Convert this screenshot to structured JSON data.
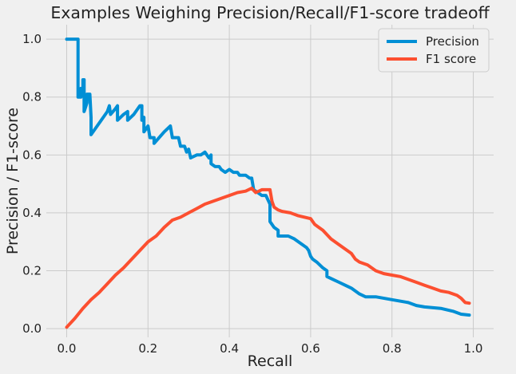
{
  "chart_data": {
    "type": "line",
    "title": "Examples Weighing Precision/Recall/F1-score tradeoff",
    "xlabel": "Recall",
    "ylabel": "Precision / F1-score",
    "xlim": [
      -0.05,
      1.05
    ],
    "ylim": [
      -0.03,
      1.05
    ],
    "xticks": [
      0.0,
      0.2,
      0.4,
      0.6,
      0.8,
      1.0
    ],
    "xtick_labels": [
      "0.0",
      "0.2",
      "0.4",
      "0.6",
      "0.8",
      "1.0"
    ],
    "yticks": [
      0.0,
      0.2,
      0.4,
      0.6,
      0.8,
      1.0
    ],
    "ytick_labels": [
      "0.0",
      "0.2",
      "0.4",
      "0.6",
      "0.8",
      "1.0"
    ],
    "grid": true,
    "legend_position": "top-right",
    "series": [
      {
        "name": "Precision",
        "color": "#008fd5",
        "points": [
          [
            0.0,
            1.0
          ],
          [
            0.028,
            1.0
          ],
          [
            0.028,
            0.8
          ],
          [
            0.035,
            0.8
          ],
          [
            0.035,
            0.83
          ],
          [
            0.04,
            0.83
          ],
          [
            0.04,
            0.86
          ],
          [
            0.043,
            0.86
          ],
          [
            0.043,
            0.75
          ],
          [
            0.05,
            0.78
          ],
          [
            0.05,
            0.81
          ],
          [
            0.057,
            0.81
          ],
          [
            0.06,
            0.73
          ],
          [
            0.06,
            0.67
          ],
          [
            0.08,
            0.71
          ],
          [
            0.1,
            0.75
          ],
          [
            0.105,
            0.77
          ],
          [
            0.108,
            0.74
          ],
          [
            0.12,
            0.76
          ],
          [
            0.125,
            0.77
          ],
          [
            0.125,
            0.72
          ],
          [
            0.14,
            0.74
          ],
          [
            0.15,
            0.75
          ],
          [
            0.15,
            0.72
          ],
          [
            0.165,
            0.74
          ],
          [
            0.18,
            0.77
          ],
          [
            0.185,
            0.77
          ],
          [
            0.185,
            0.72
          ],
          [
            0.19,
            0.73
          ],
          [
            0.19,
            0.68
          ],
          [
            0.2,
            0.7
          ],
          [
            0.205,
            0.66
          ],
          [
            0.215,
            0.66
          ],
          [
            0.215,
            0.64
          ],
          [
            0.24,
            0.68
          ],
          [
            0.255,
            0.7
          ],
          [
            0.26,
            0.66
          ],
          [
            0.275,
            0.66
          ],
          [
            0.28,
            0.63
          ],
          [
            0.29,
            0.63
          ],
          [
            0.295,
            0.61
          ],
          [
            0.3,
            0.62
          ],
          [
            0.305,
            0.59
          ],
          [
            0.32,
            0.6
          ],
          [
            0.33,
            0.6
          ],
          [
            0.34,
            0.61
          ],
          [
            0.35,
            0.59
          ],
          [
            0.355,
            0.6
          ],
          [
            0.355,
            0.57
          ],
          [
            0.365,
            0.56
          ],
          [
            0.375,
            0.56
          ],
          [
            0.38,
            0.55
          ],
          [
            0.39,
            0.54
          ],
          [
            0.4,
            0.55
          ],
          [
            0.41,
            0.54
          ],
          [
            0.42,
            0.54
          ],
          [
            0.425,
            0.53
          ],
          [
            0.44,
            0.53
          ],
          [
            0.45,
            0.52
          ],
          [
            0.455,
            0.52
          ],
          [
            0.46,
            0.48
          ],
          [
            0.47,
            0.47
          ],
          [
            0.48,
            0.46
          ],
          [
            0.49,
            0.46
          ],
          [
            0.5,
            0.43
          ],
          [
            0.5,
            0.37
          ],
          [
            0.51,
            0.35
          ],
          [
            0.52,
            0.34
          ],
          [
            0.52,
            0.32
          ],
          [
            0.545,
            0.32
          ],
          [
            0.56,
            0.31
          ],
          [
            0.58,
            0.29
          ],
          [
            0.59,
            0.28
          ],
          [
            0.595,
            0.27
          ],
          [
            0.6,
            0.25
          ],
          [
            0.605,
            0.24
          ],
          [
            0.615,
            0.23
          ],
          [
            0.63,
            0.21
          ],
          [
            0.64,
            0.2
          ],
          [
            0.64,
            0.18
          ],
          [
            0.655,
            0.17
          ],
          [
            0.67,
            0.16
          ],
          [
            0.685,
            0.15
          ],
          [
            0.7,
            0.14
          ],
          [
            0.72,
            0.12
          ],
          [
            0.735,
            0.11
          ],
          [
            0.76,
            0.11
          ],
          [
            0.8,
            0.1
          ],
          [
            0.84,
            0.09
          ],
          [
            0.86,
            0.08
          ],
          [
            0.88,
            0.075
          ],
          [
            0.92,
            0.07
          ],
          [
            0.95,
            0.06
          ],
          [
            0.97,
            0.05
          ],
          [
            0.99,
            0.047
          ]
        ]
      },
      {
        "name": "F1 score",
        "color": "#fc4f30",
        "points": [
          [
            0.0,
            0.005
          ],
          [
            0.02,
            0.035
          ],
          [
            0.04,
            0.07
          ],
          [
            0.06,
            0.1
          ],
          [
            0.08,
            0.125
          ],
          [
            0.1,
            0.155
          ],
          [
            0.12,
            0.185
          ],
          [
            0.14,
            0.21
          ],
          [
            0.16,
            0.24
          ],
          [
            0.18,
            0.27
          ],
          [
            0.2,
            0.3
          ],
          [
            0.22,
            0.32
          ],
          [
            0.24,
            0.35
          ],
          [
            0.26,
            0.375
          ],
          [
            0.28,
            0.385
          ],
          [
            0.3,
            0.4
          ],
          [
            0.32,
            0.415
          ],
          [
            0.34,
            0.43
          ],
          [
            0.36,
            0.44
          ],
          [
            0.38,
            0.45
          ],
          [
            0.4,
            0.46
          ],
          [
            0.42,
            0.47
          ],
          [
            0.44,
            0.475
          ],
          [
            0.455,
            0.485
          ],
          [
            0.465,
            0.47
          ],
          [
            0.48,
            0.48
          ],
          [
            0.5,
            0.48
          ],
          [
            0.505,
            0.44
          ],
          [
            0.51,
            0.42
          ],
          [
            0.52,
            0.41
          ],
          [
            0.53,
            0.405
          ],
          [
            0.55,
            0.4
          ],
          [
            0.57,
            0.39
          ],
          [
            0.6,
            0.38
          ],
          [
            0.61,
            0.36
          ],
          [
            0.62,
            0.35
          ],
          [
            0.63,
            0.34
          ],
          [
            0.65,
            0.31
          ],
          [
            0.67,
            0.29
          ],
          [
            0.69,
            0.27
          ],
          [
            0.7,
            0.26
          ],
          [
            0.71,
            0.24
          ],
          [
            0.72,
            0.23
          ],
          [
            0.74,
            0.22
          ],
          [
            0.76,
            0.2
          ],
          [
            0.78,
            0.19
          ],
          [
            0.8,
            0.185
          ],
          [
            0.82,
            0.18
          ],
          [
            0.84,
            0.17
          ],
          [
            0.86,
            0.16
          ],
          [
            0.88,
            0.15
          ],
          [
            0.9,
            0.14
          ],
          [
            0.92,
            0.13
          ],
          [
            0.94,
            0.125
          ],
          [
            0.96,
            0.115
          ],
          [
            0.97,
            0.105
          ],
          [
            0.98,
            0.09
          ],
          [
            0.99,
            0.088
          ]
        ]
      }
    ]
  }
}
